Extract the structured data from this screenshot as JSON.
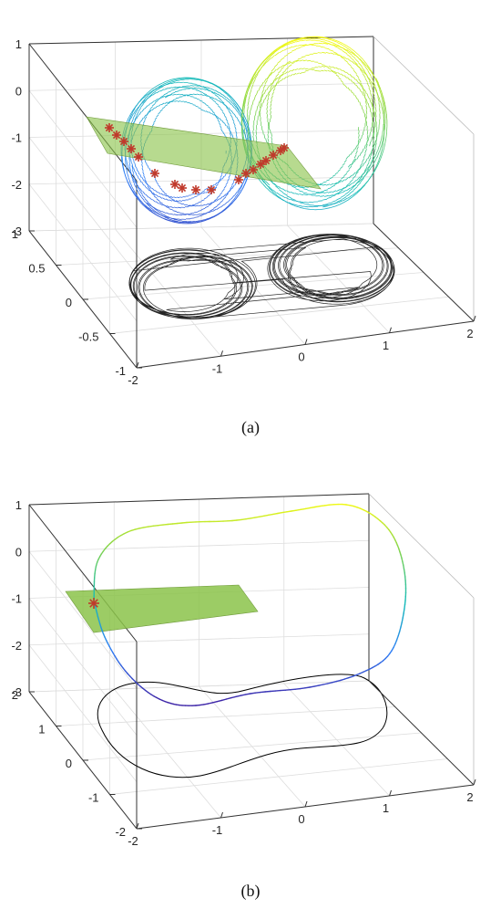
{
  "chart_data": [
    {
      "type": "line",
      "panel": "a",
      "caption": "(a)",
      "description": "chaotic attractor with Poincare section plane, star markers on intersection points, black projection on x-y plane",
      "x_ticks": [
        "-2",
        "-1",
        "0",
        "1",
        "2"
      ],
      "y_ticks": [
        "-1",
        "-0.5",
        "0",
        "0.5",
        "1"
      ],
      "z_ticks": [
        "1",
        "0",
        "-1",
        "-2",
        "-3"
      ],
      "xlim": [
        -2,
        2
      ],
      "ylim": [
        -1,
        1
      ],
      "zlim": [
        -3,
        1
      ],
      "grid": true,
      "colormap": [
        "#3e26a8",
        "#2f7ef5",
        "#16bcb8",
        "#7fd34e",
        "#f9fb0e"
      ],
      "plane_color": "#8bc34a",
      "marker_color": "#c0392b",
      "projection_color": "#000000"
    },
    {
      "type": "line",
      "panel": "b",
      "caption": "(b)",
      "description": "periodic orbit with Poincare section plane, one star marker, black projection on x-y plane",
      "x_ticks": [
        "-2",
        "-1",
        "0",
        "1",
        "2"
      ],
      "y_ticks": [
        "-2",
        "-1",
        "0",
        "1",
        "2"
      ],
      "z_ticks": [
        "1",
        "0",
        "-1",
        "-2",
        "-3"
      ],
      "xlim": [
        -2,
        2
      ],
      "ylim": [
        -2,
        2
      ],
      "zlim": [
        -3,
        1
      ],
      "grid": true,
      "colormap": [
        "#3e26a8",
        "#2f7ef5",
        "#16bcb8",
        "#7fd34e",
        "#f9fb0e"
      ],
      "plane_color": "#8bc34a",
      "marker_color": "#c0392b",
      "projection_color": "#000000"
    }
  ]
}
